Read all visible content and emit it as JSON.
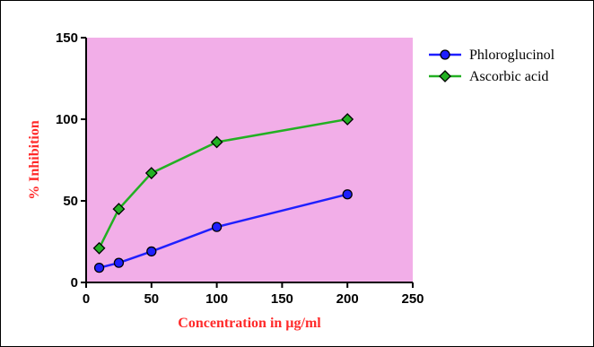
{
  "chart_data": {
    "type": "line",
    "title": "",
    "xlabel": "Concentration in µg/ml",
    "ylabel": "% Inhibition",
    "xlim": [
      0,
      250
    ],
    "ylim": [
      0,
      150
    ],
    "xticks": [
      0,
      50,
      100,
      150,
      200,
      250
    ],
    "yticks": [
      0,
      50,
      100,
      150
    ],
    "plot_background": "#f2aee8",
    "axis_title_color": "#ff2a2a",
    "grid": false,
    "legend_position": "top-right, outside plot",
    "series": [
      {
        "name": "Phloroglucinol",
        "color": "#1f1fff",
        "marker": "circle",
        "x": [
          10,
          25,
          50,
          100,
          200
        ],
        "y": [
          9,
          12,
          19,
          34,
          54
        ]
      },
      {
        "name": "Ascorbic acid",
        "color": "#22b022",
        "marker": "diamond",
        "x": [
          10,
          25,
          50,
          100,
          200
        ],
        "y": [
          21,
          45,
          67,
          86,
          100
        ]
      }
    ]
  }
}
